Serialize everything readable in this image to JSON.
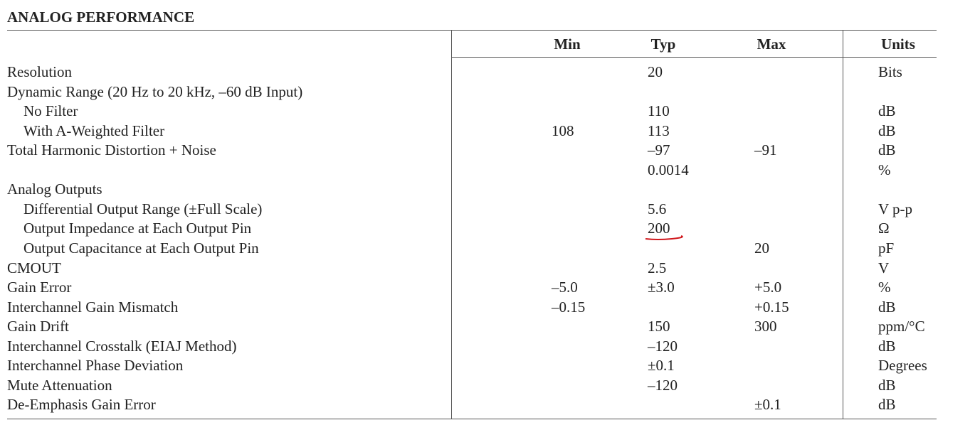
{
  "title": "ANALOG PERFORMANCE",
  "table": {
    "header": [
      null,
      "Min",
      "Typ",
      "Max",
      "Units"
    ],
    "rows": [
      {
        "cells": [
          "Resolution",
          null,
          "20",
          null,
          "Bits"
        ]
      },
      {
        "cells": [
          "Dynamic Range (20 Hz to 20 kHz, –60 dB Input)",
          null,
          null,
          null,
          null
        ]
      },
      {
        "cells": [
          "No Filter",
          null,
          "110",
          null,
          "dB"
        ],
        "indent": true
      },
      {
        "cells": [
          "With A-Weighted Filter",
          "108",
          "113",
          null,
          "dB"
        ],
        "indent": true
      },
      {
        "cells": [
          "Total Harmonic Distortion + Noise",
          null,
          "–97",
          "–91",
          "dB"
        ]
      },
      {
        "cells": [
          null,
          null,
          "0.0014",
          null,
          "%"
        ]
      },
      {
        "cells": [
          "Analog Outputs",
          null,
          null,
          null,
          null
        ]
      },
      {
        "cells": [
          "Differential Output Range (±Full Scale)",
          null,
          "5.6",
          null,
          "V p-p"
        ],
        "indent": true
      },
      {
        "cells": [
          "Output Impedance at Each Output Pin",
          null,
          "200",
          null,
          "Ω"
        ],
        "indent": true
      },
      {
        "cells": [
          "Output Capacitance at Each Output Pin",
          null,
          null,
          "20",
          "pF"
        ],
        "indent": true
      },
      {
        "cells": [
          "CMOUT",
          null,
          "2.5",
          null,
          "V"
        ]
      },
      {
        "cells": [
          "Gain Error",
          "–5.0",
          "±3.0",
          "+5.0",
          "%"
        ]
      },
      {
        "cells": [
          "Interchannel Gain Mismatch",
          "–0.15",
          null,
          "+0.15",
          "dB"
        ]
      },
      {
        "cells": [
          "Gain Drift",
          null,
          "150",
          "300",
          "ppm/°C"
        ]
      },
      {
        "cells": [
          "Interchannel Crosstalk (EIAJ Method)",
          null,
          "–120",
          null,
          "dB"
        ]
      },
      {
        "cells": [
          "Interchannel Phase Deviation",
          null,
          "±0.1",
          null,
          "Degrees"
        ]
      },
      {
        "cells": [
          "Mute Attenuation",
          null,
          "–120",
          null,
          "dB"
        ]
      },
      {
        "cells": [
          "De-Emphasis Gain Error",
          null,
          null,
          "±0.1",
          "dB"
        ]
      }
    ]
  }
}
